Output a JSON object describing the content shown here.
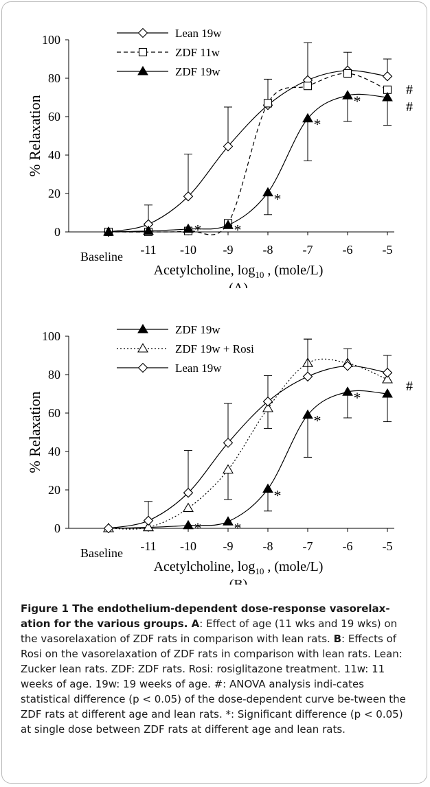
{
  "chart_data": [
    {
      "type": "line",
      "categories": [
        "Baseline",
        "-11",
        "-10",
        "-9",
        "-8",
        "-7",
        "-6",
        "-5"
      ],
      "xlabel": "Acetylcholine, log10 , (mole/L)",
      "xlabel_parts": {
        "pre": "Acetylcholine, log",
        "sub": "10",
        "post": " , (mole/L)"
      },
      "ylabel": "% Relaxation",
      "ylim": [
        0,
        100
      ],
      "yticks": [
        "0",
        "20",
        "40",
        "60",
        "80",
        "100"
      ],
      "panel_label": "(A)",
      "legend_placement": "top-left",
      "series": [
        {
          "name": "Lean 19w",
          "marker": "diamond-open",
          "line": "solid",
          "values": [
            0,
            4,
            18.5,
            44.5,
            66,
            79,
            84,
            81
          ],
          "error_up": [
            0,
            10,
            22,
            20.5,
            13.5,
            19.5,
            9.5,
            9
          ]
        },
        {
          "name": "ZDF 11w",
          "marker": "square-open",
          "line": "dashed",
          "values": [
            0,
            0,
            0.5,
            4.5,
            67,
            76,
            82.5,
            74
          ],
          "error_up": [
            0,
            0,
            0,
            0,
            0,
            0,
            0,
            0
          ]
        },
        {
          "name": "ZDF 19w",
          "marker": "triangle-filled",
          "line": "solid",
          "values": [
            0,
            0.5,
            1.5,
            3.5,
            20.5,
            59,
            71,
            70
          ],
          "error_down": [
            0,
            0,
            0,
            0,
            11.5,
            22,
            13.5,
            14.5
          ]
        }
      ],
      "annotations": [
        {
          "text": "*",
          "x": "-10",
          "y": 2
        },
        {
          "text": "*",
          "x": "-9",
          "y": 2
        },
        {
          "text": "*",
          "x": "-8",
          "y": 18
        },
        {
          "text": "*",
          "x": "-7",
          "y": 57
        },
        {
          "text": "*",
          "x": "-6",
          "y": 69
        },
        {
          "text": "#",
          "x": "-5",
          "y": 74
        },
        {
          "text": "#",
          "x": "-5",
          "y": 65
        }
      ]
    },
    {
      "type": "line",
      "categories": [
        "Baseline",
        "-11",
        "-10",
        "-9",
        "-8",
        "-7",
        "-6",
        "-5"
      ],
      "xlabel": "Acetylcholine, log10 , (mole/L)",
      "xlabel_parts": {
        "pre": "Acetylcholine, log",
        "sub": "10",
        "post": " , (mole/L)"
      },
      "ylabel": "% Relaxation",
      "ylim": [
        0,
        100
      ],
      "yticks": [
        "0",
        "20",
        "40",
        "60",
        "80",
        "100"
      ],
      "panel_label": "(B)",
      "legend_placement": "top-left",
      "series": [
        {
          "name": "ZDF 19w",
          "marker": "triangle-filled",
          "line": "solid",
          "values": [
            0,
            0.5,
            1.5,
            3.5,
            20.5,
            59,
            71,
            70
          ],
          "error_down": [
            0,
            0,
            0,
            0,
            11.5,
            22,
            13.5,
            14.5
          ]
        },
        {
          "name": "ZDF 19w + Rosi",
          "marker": "triangle-open",
          "line": "dotted",
          "values": [
            0,
            0.5,
            10.5,
            30.5,
            62.5,
            86,
            86,
            77.5
          ],
          "error_up": [
            0,
            0,
            0,
            0,
            0,
            12.5,
            0,
            0
          ],
          "error_down": [
            0,
            0,
            0,
            15.5,
            10.5,
            0,
            0,
            0
          ]
        },
        {
          "name": "Lean 19w",
          "marker": "diamond-open",
          "line": "solid",
          "values": [
            0,
            4,
            18.5,
            44.5,
            66,
            79,
            84.5,
            81
          ],
          "error_up": [
            0,
            10,
            22,
            20.5,
            13.5,
            19.5,
            9,
            9
          ]
        }
      ],
      "annotations": [
        {
          "text": "*",
          "x": "-10",
          "y": 1
        },
        {
          "text": "*",
          "x": "-9",
          "y": 1
        },
        {
          "text": "*",
          "x": "-8",
          "y": 18
        },
        {
          "text": "*",
          "x": "-7",
          "y": 57
        },
        {
          "text": "*",
          "x": "-6",
          "y": 69
        },
        {
          "text": "#",
          "x": "-5",
          "y": 74
        }
      ]
    }
  ],
  "caption": {
    "title": "Figure 1 The endothelium-dependent dose-response vasorelax-ation for the various groups",
    "title_end": ". ",
    "a_label": "A",
    "a_text": ": Effect of age (11 wks and 19 wks) on the vasorelaxation of ZDF rats in comparison with lean rats. ",
    "b_label": "B",
    "b_text": ": Effects of Rosi on the vasorelaxation of ZDF rats in comparison with lean rats. Lean: Zucker lean rats. ZDF: ZDF rats. Rosi: rosiglitazone treatment. 11w: 11 weeks of age. 19w: 19 weeks of age. #: ANOVA analysis indi-cates statistical difference (p < 0.05) of the dose-dependent curve be-tween the ZDF rats at different age and lean rats. *: Significant difference (p < 0.05) at single dose between ZDF rats at different age and lean rats."
  }
}
